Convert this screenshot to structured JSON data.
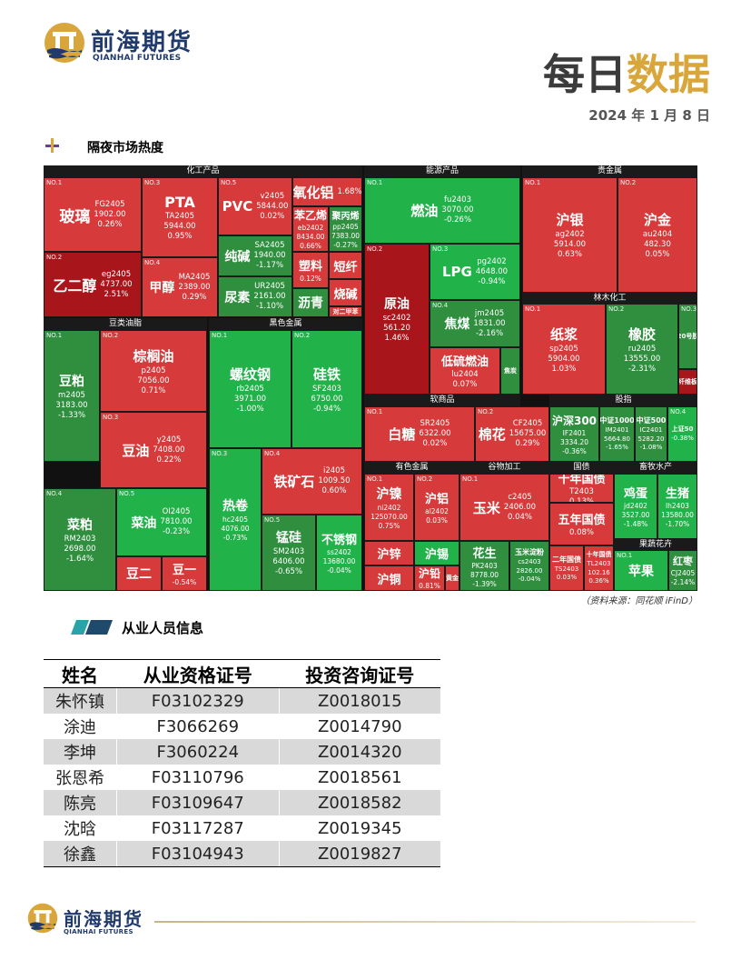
{
  "header": {
    "logo_cn": "前海期货",
    "logo_en": "QIANHAI FUTURES",
    "title_part1": "每日",
    "title_part2": "数据",
    "date": "2024 年 1 月 8 日"
  },
  "colors": {
    "up": "#d63a3a",
    "up_dark": "#a8161c",
    "down": "#2f8f3f",
    "down_bright": "#22b24a",
    "gold": "#d8a63a",
    "brand": "#1f3a6b"
  },
  "section1": {
    "title": "隔夜市场热度"
  },
  "treemap": {
    "sector_headers": {
      "chem": "化工产品",
      "energy": "能源产品",
      "precious": "贵金属",
      "forest": "林木化工",
      "oils": "豆类油脂",
      "ferrous": "黑色金属",
      "soft": "软商品",
      "finance": "股指",
      "nonferrous": "有色金属",
      "grain": "谷物加工",
      "bonds": "国债",
      "livestock": "畜牧水产",
      "fruit": "果蔬花卉"
    },
    "tiles": {
      "glass": {
        "no": "NO.1",
        "name": "玻璃",
        "code": "FG2405",
        "price": "1902.00",
        "change": "0.26%"
      },
      "pta": {
        "no": "NO.3",
        "name": "PTA",
        "code": "TA2405",
        "price": "5944.00",
        "change": "0.95%"
      },
      "pvc": {
        "no": "NO.5",
        "name": "PVC",
        "code": "v2405",
        "price": "5844.00",
        "change": "0.02%"
      },
      "alumina": {
        "name": "氧化铝",
        "change": "1.68%"
      },
      "styrene": {
        "name": "苯乙烯",
        "code": "eb2402",
        "price": "8434.00",
        "change": "0.66%"
      },
      "pp": {
        "name": "聚丙烯",
        "code": "pp2405",
        "price": "7383.00",
        "change": "-0.27%"
      },
      "soda": {
        "name": "纯碱",
        "code": "SA2405",
        "price": "1940.00",
        "change": "-1.17%"
      },
      "plastic": {
        "name": "塑料",
        "change": "0.12%"
      },
      "sfiber": {
        "name": "短纤"
      },
      "urea": {
        "name": "尿素",
        "code": "UR2405",
        "price": "2161.00",
        "change": "-1.10%"
      },
      "bitumen": {
        "name": "沥青"
      },
      "caustic": {
        "name": "烧碱"
      },
      "px": {
        "name": "对二甲苯"
      },
      "eg": {
        "no": "NO.2",
        "name": "乙二醇",
        "code": "eg2405",
        "price": "4737.00",
        "change": "2.51%"
      },
      "methanol": {
        "no": "NO.4",
        "name": "甲醇",
        "code": "MA2405",
        "price": "2389.00",
        "change": "0.29%"
      },
      "fuel": {
        "no": "NO.1",
        "name": "燃油",
        "code": "fu2403",
        "price": "3070.00",
        "change": "-0.26%"
      },
      "crude": {
        "no": "NO.2",
        "name": "原油",
        "code": "sc2402",
        "price": "561.20",
        "change": "1.46%"
      },
      "lpg": {
        "no": "NO.3",
        "name": "LPG",
        "code": "pg2402",
        "price": "4648.00",
        "change": "-0.94%"
      },
      "coke": {
        "no": "NO.4",
        "name": "焦煤",
        "code": "jm2405",
        "price": "1831.00",
        "change": "-2.16%"
      },
      "lsfuel": {
        "name": "低硫燃油",
        "code": "lu2404",
        "change": "0.07%"
      },
      "cokeb": {
        "name": "焦炭"
      },
      "silver": {
        "no": "NO.1",
        "name": "沪银",
        "code": "ag2402",
        "price": "5914.00",
        "change": "0.63%"
      },
      "gold": {
        "no": "NO.2",
        "name": "沪金",
        "code": "au2404",
        "price": "482.30",
        "change": "0.05%"
      },
      "pulp": {
        "no": "NO.1",
        "name": "纸浆",
        "code": "sp2405",
        "price": "5904.00",
        "change": "1.03%"
      },
      "rubber": {
        "no": "NO.2",
        "name": "橡胶",
        "code": "ru2405",
        "price": "13555.00",
        "change": "-2.31%"
      },
      "rubber20": {
        "no": "NO.3",
        "name": "20号胶"
      },
      "fiberboard": {
        "name": "纤维板"
      },
      "meal": {
        "no": "NO.1",
        "name": "豆粕",
        "code": "m2405",
        "price": "3183.00",
        "change": "-1.33%"
      },
      "palm": {
        "no": "NO.2",
        "name": "棕榈油",
        "code": "p2405",
        "price": "7056.00",
        "change": "0.71%"
      },
      "soyoil": {
        "no": "NO.3",
        "name": "豆油",
        "code": "y2405",
        "price": "7408.00",
        "change": "0.22%"
      },
      "rmeal": {
        "no": "NO.4",
        "name": "菜粕",
        "code": "RM2403",
        "price": "2698.00",
        "change": "-1.64%"
      },
      "roil": {
        "no": "NO.5",
        "name": "菜油",
        "code": "OI2405",
        "price": "7810.00",
        "change": "-0.23%"
      },
      "soy2": {
        "name": "豆二"
      },
      "soy1": {
        "name": "豆一",
        "change": "-0.54%"
      },
      "rebar": {
        "no": "NO.1",
        "name": "螺纹钢",
        "code": "rb2405",
        "price": "3971.00",
        "change": "-1.00%"
      },
      "sife": {
        "no": "NO.2",
        "name": "硅铁",
        "code": "SF2403",
        "price": "6750.00",
        "change": "-0.94%"
      },
      "hcoil": {
        "no": "NO.3",
        "name": "热卷",
        "code": "hc2405",
        "price": "4076.00",
        "change": "-0.73%"
      },
      "iron": {
        "no": "NO.4",
        "name": "铁矿石",
        "code": "i2405",
        "price": "1009.50",
        "change": "0.60%"
      },
      "simn": {
        "no": "NO.5",
        "name": "锰硅",
        "code": "SM2403",
        "price": "6406.00",
        "change": "-0.65%"
      },
      "ss": {
        "name": "不锈钢",
        "code": "ss2402",
        "price": "13680.00",
        "change": "-0.04%"
      },
      "sugar": {
        "no": "NO.1",
        "name": "白糖",
        "code": "SR2405",
        "price": "6322.00",
        "change": "0.02%"
      },
      "cotton": {
        "no": "NO.2",
        "name": "棉花",
        "code": "CF2405",
        "price": "15675.00",
        "change": "0.29%"
      },
      "hs300": {
        "name": "沪深300",
        "code": "IF2401",
        "price": "3334.20",
        "change": "-0.36%"
      },
      "zz1000": {
        "name": "中证1000",
        "code": "IM2401",
        "price": "5664.80",
        "change": "-1.65%"
      },
      "zz500": {
        "name": "中证500",
        "code": "IC2401",
        "price": "5282.20",
        "change": "-1.08%"
      },
      "sz50": {
        "no": "NO.4",
        "name": "上证50",
        "change": "-0.38%"
      },
      "nickel": {
        "no": "NO.1",
        "name": "沪镍",
        "code": "ni2402",
        "price": "125070.00",
        "change": "0.75%"
      },
      "al": {
        "no": "NO.2",
        "name": "沪铝",
        "code": "al2402",
        "change": "0.03%"
      },
      "zn": {
        "name": "沪锌"
      },
      "sn": {
        "name": "沪锡"
      },
      "cu": {
        "name": "沪铜"
      },
      "pb": {
        "name": "沪铅",
        "change": "0.81%"
      },
      "au_small": {
        "name": "黄金"
      },
      "corn": {
        "no": "NO.1",
        "name": "玉米",
        "code": "c2405",
        "price": "2406.00",
        "change": "0.04%"
      },
      "peanut": {
        "name": "花生",
        "code": "PK2403",
        "price": "8778.00",
        "change": "-1.39%"
      },
      "starch": {
        "name": "玉米淀粉",
        "code": "cs2403",
        "price": "2826.00",
        "change": "-0.04%"
      },
      "t10": {
        "name": "十年国债",
        "code": "T2403",
        "change": "0.13%"
      },
      "t5": {
        "name": "五年国债",
        "change": "0.08%"
      },
      "t2": {
        "name": "二年国债",
        "code": "TS2403",
        "change": "0.03%"
      },
      "t30": {
        "name": "十年国债",
        "code": "TL2403",
        "price": "102.16",
        "change": "0.36%"
      },
      "egg": {
        "name": "鸡蛋",
        "code": "jd2402",
        "price": "3527.00",
        "change": "-1.48%"
      },
      "hog": {
        "name": "生猪",
        "code": "lh2403",
        "price": "13580.00",
        "change": "-1.70%"
      },
      "apple": {
        "no": "NO.1",
        "name": "苹果"
      },
      "jujube": {
        "name": "红枣",
        "code": "CJ2405",
        "change": "-2.14%"
      }
    }
  },
  "source_note": "（资料来源：同花顺 iFinD）",
  "section2": {
    "title": "从业人员信息"
  },
  "staff_table": {
    "headers": [
      "姓名",
      "从业资格证号",
      "投资咨询证号"
    ],
    "rows": [
      [
        "朱怀镇",
        "F03102329",
        "Z0018015"
      ],
      [
        "涂迪",
        "F3066269",
        "Z0014790"
      ],
      [
        "李坤",
        "F3060224",
        "Z0014320"
      ],
      [
        "张恩希",
        "F03110796",
        "Z0018561"
      ],
      [
        "陈亮",
        "F03109647",
        "Z0018582"
      ],
      [
        "沈晗",
        "F03117287",
        "Z0019345"
      ],
      [
        "徐鑫",
        "F03104943",
        "Z0019827"
      ]
    ]
  },
  "footer": {
    "logo_cn": "前海期货",
    "logo_en": "QIANHAI FUTURES"
  }
}
